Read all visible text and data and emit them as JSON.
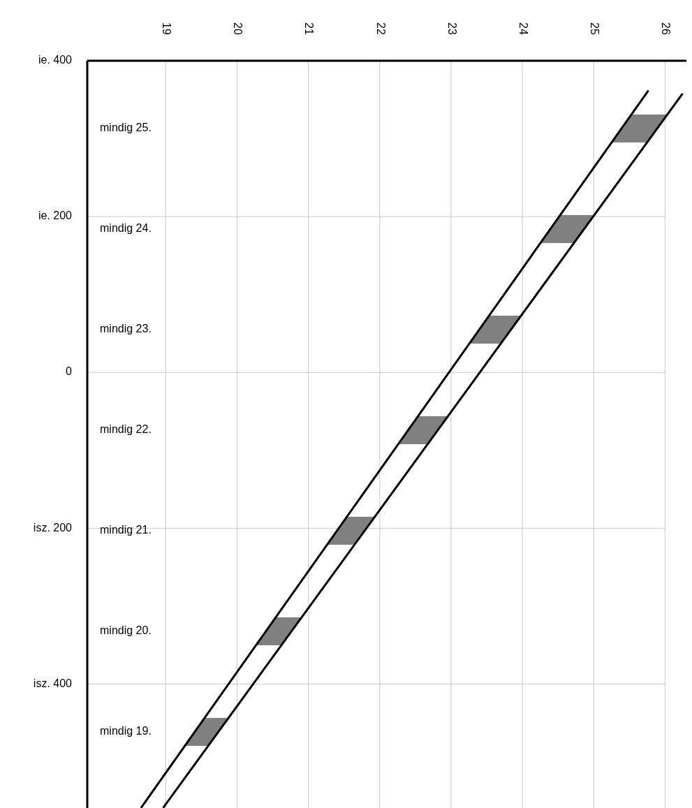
{
  "chart_data": {
    "type": "line",
    "xlim": [
      17.9,
      26.3
    ],
    "xticks": [
      19,
      20,
      21,
      22,
      23,
      24,
      25,
      26
    ],
    "ylim": [
      560,
      -400
    ],
    "yticks": [
      {
        "value": -400,
        "label": "ie. 400"
      },
      {
        "value": -200,
        "label": "ie. 200"
      },
      0,
      {
        "value": 200,
        "label": "isz. 200"
      },
      {
        "value": 400,
        "label": "isz. 400"
      }
    ],
    "grid": true,
    "series": [
      {
        "color": "#000000",
        "x": [
          18.66,
          25.76
        ],
        "values": [
          558,
          -361
        ]
      },
      {
        "color": "#000000",
        "x": [
          18.97,
          26.24
        ],
        "values": [
          558,
          -357
        ]
      }
    ],
    "annotations": [
      "mindig 25.",
      "mindig 24.",
      "mindig 23.",
      "mindig 22.",
      "mindig 21.",
      "mindig 20.",
      "mindig 19."
    ]
  }
}
